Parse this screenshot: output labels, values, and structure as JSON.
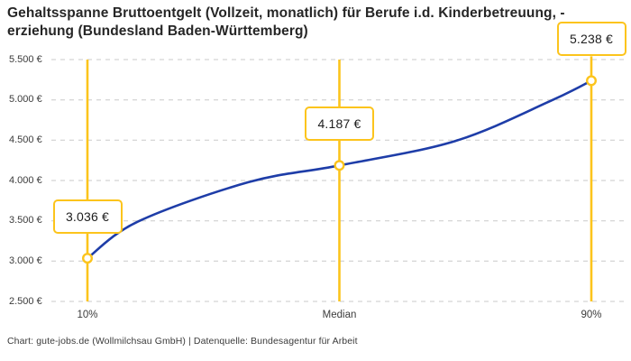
{
  "header": {
    "title_lines": [
      "Gehaltsspanne Bruttoentgelt (Vollzeit, monatlich) für Berufe i.d. Kinderbetreuung, -",
      "erziehung (Bundesland Baden-Württemberg)"
    ]
  },
  "footer": {
    "credit": "Chart: gute-jobs.de (Wollmilchsau GmbH) | Datenquelle: Bundesagentur für Arbeit"
  },
  "colors": {
    "accent_yellow": "#FCC41C",
    "line_blue": "#1E3DA8",
    "grid_gray": "#C9C9C9",
    "text_dark": "#262626",
    "text_label": "#3B3B3B",
    "marker_fill": "#FFFFFF"
  },
  "chart_data": {
    "type": "line",
    "title": "Gehaltsspanne Bruttoentgelt (Vollzeit, monatlich) für Berufe i.d. Kinderbetreuung, -erziehung (Bundesland Baden-Württemberg)",
    "categories": [
      "10%",
      "Median",
      "90%"
    ],
    "values": [
      3036,
      4187,
      5238
    ],
    "value_labels": [
      "3.036 €",
      "4.187 €",
      "5.238 €"
    ],
    "y_ticks": [
      {
        "value": 5500,
        "label": "5.500 €"
      },
      {
        "value": 5000,
        "label": "5.000 €"
      },
      {
        "value": 4500,
        "label": "4.500 €"
      },
      {
        "value": 4000,
        "label": "4.000 €"
      },
      {
        "value": 3500,
        "label": "3.500 €"
      },
      {
        "value": 3000,
        "label": "3.000 €"
      },
      {
        "value": 2500,
        "label": "2.500 €"
      }
    ],
    "ylim": [
      2500,
      5500
    ],
    "xlabel": "",
    "ylabel": "",
    "grid": "horizontal-dashed",
    "legend": "none",
    "marker_style": "open-circle",
    "curve_samples": [
      {
        "t": 0.0,
        "value": 3036
      },
      {
        "t": 0.1,
        "value": 3490
      },
      {
        "t": 0.32,
        "value": 3980
      },
      {
        "t": 0.5,
        "value": 4187
      },
      {
        "t": 0.73,
        "value": 4490
      },
      {
        "t": 0.92,
        "value": 4990
      },
      {
        "t": 1.0,
        "value": 5238
      }
    ]
  }
}
